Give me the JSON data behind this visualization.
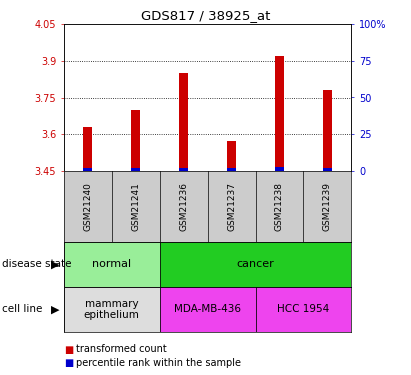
{
  "title": "GDS817 / 38925_at",
  "samples": [
    "GSM21240",
    "GSM21241",
    "GSM21236",
    "GSM21237",
    "GSM21238",
    "GSM21239"
  ],
  "transformed_counts": [
    3.63,
    3.7,
    3.85,
    3.57,
    3.92,
    3.78
  ],
  "percentile_ranks": [
    1.5,
    1.5,
    1.5,
    1.5,
    2.5,
    1.5
  ],
  "ylim_left": [
    3.45,
    4.05
  ],
  "ylim_right": [
    0,
    100
  ],
  "yticks_left": [
    3.45,
    3.6,
    3.75,
    3.9,
    4.05
  ],
  "yticks_right": [
    0,
    25,
    50,
    75,
    100
  ],
  "ytick_labels_left": [
    "3.45",
    "3.6",
    "3.75",
    "3.9",
    "4.05"
  ],
  "ytick_labels_right": [
    "0",
    "25",
    "50",
    "75",
    "100%"
  ],
  "bar_color_red": "#cc0000",
  "bar_color_blue": "#0000cc",
  "bar_width": 0.18,
  "disease_states": [
    {
      "label": "normal",
      "cols": [
        0,
        1
      ],
      "color": "#99ee99"
    },
    {
      "label": "cancer",
      "cols": [
        2,
        3,
        4,
        5
      ],
      "color": "#22cc22"
    }
  ],
  "cell_lines": [
    {
      "label": "mammary\nepithelium",
      "cols": [
        0,
        1
      ],
      "color": "#dddddd"
    },
    {
      "label": "MDA-MB-436",
      "cols": [
        2,
        3
      ],
      "color": "#ee44ee"
    },
    {
      "label": "HCC 1954",
      "cols": [
        4,
        5
      ],
      "color": "#ee44ee"
    }
  ],
  "legend_red_label": "transformed count",
  "legend_blue_label": "percentile rank within the sample",
  "disease_state_label": "disease state",
  "cell_line_label": "cell line",
  "grid_color": "#000000",
  "ax_bg": "#ffffff",
  "tick_color_left": "#cc0000",
  "tick_color_right": "#0000cc"
}
